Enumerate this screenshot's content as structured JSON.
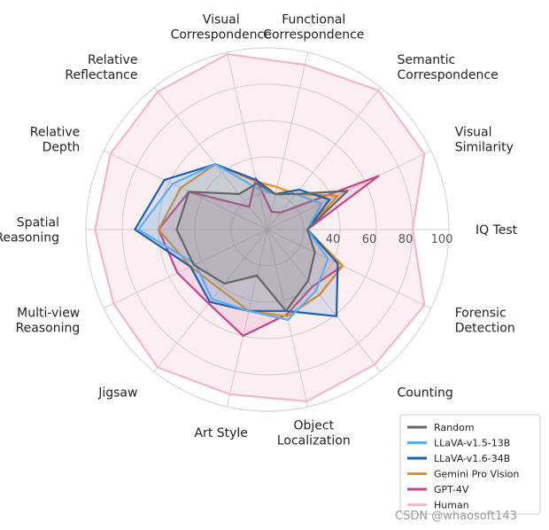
{
  "chart_data": {
    "type": "radar",
    "title": "",
    "categories": [
      "IQ Test",
      "Visual Similarity",
      "Semantic Correspondence",
      "Functional Correspondence",
      "Visual Correspondence",
      "Relative Reflectance",
      "Relative Depth",
      "Spatial Reasoning",
      "Multi-view Reasoning",
      "Jigsaw",
      "Art Style",
      "Object Localization",
      "Counting",
      "Forensic Detection"
    ],
    "category_lines": [
      [
        "IQ Test"
      ],
      [
        "Visual",
        "Similarity"
      ],
      [
        "Semantic",
        "Correspondence"
      ],
      [
        "Functional",
        "Correspondence"
      ],
      [
        "Visual",
        "Correspondence"
      ],
      [
        "Relative",
        "Reflectance"
      ],
      [
        "Relative",
        "Depth"
      ],
      [
        "Spatial",
        "Reasoning"
      ],
      [
        "Multi-view",
        "Reasoning"
      ],
      [
        "Jigsaw"
      ],
      [
        "Art Style"
      ],
      [
        "Object",
        "Localization"
      ],
      [
        "Counting"
      ],
      [
        "Forensic",
        "Detection"
      ]
    ],
    "rlim": [
      0,
      100
    ],
    "radial_ticks": [
      40,
      60,
      80,
      100
    ],
    "grid_levels": [
      20,
      40,
      60,
      80,
      100
    ],
    "series": [
      {
        "name": "Human",
        "color": "#f2b8c6",
        "fill": true,
        "values": [
          80,
          96,
          98,
          93,
          99,
          97,
          96,
          95,
          94,
          97,
          93,
          97,
          95,
          96
        ]
      },
      {
        "name": "GPT-4V",
        "color": "#c8448a",
        "fill": true,
        "values": [
          22,
          68,
          12,
          10,
          29,
          16,
          48,
          60,
          55,
          52,
          60,
          48,
          40,
          46
        ]
      },
      {
        "name": "Gemini Pro Vision",
        "color": "#e8901e",
        "fill": true,
        "values": [
          22,
          43,
          25,
          24,
          27,
          46,
          53,
          60,
          47,
          42,
          46,
          49,
          46,
          46
        ]
      },
      {
        "name": "LLaVA-v1.6-34B",
        "color": "#1a5fb4",
        "fill": true,
        "values": [
          22,
          38,
          28,
          20,
          28,
          46,
          63,
          73,
          47,
          51,
          46,
          46,
          61,
          43
        ]
      },
      {
        "name": "LLaVA-v1.5-13B",
        "color": "#5aaef0",
        "fill": true,
        "values": [
          22,
          33,
          25,
          20,
          23,
          46,
          58,
          71,
          44,
          49,
          46,
          51,
          43,
          37
        ]
      },
      {
        "name": "Random",
        "color": "#666666",
        "fill": true,
        "values": [
          22,
          49,
          25,
          20,
          26,
          25,
          48,
          50,
          45,
          38,
          26,
          46,
          36,
          29
        ]
      }
    ],
    "legend": {
      "position": "bottom-right",
      "entries": [
        "Random",
        "LLaVA-v1.5-13B",
        "LLaVA-v1.6-34B",
        "Gemini Pro Vision",
        "GPT-4V",
        "Human"
      ]
    }
  },
  "watermark": "CSDN @whaosoft143"
}
